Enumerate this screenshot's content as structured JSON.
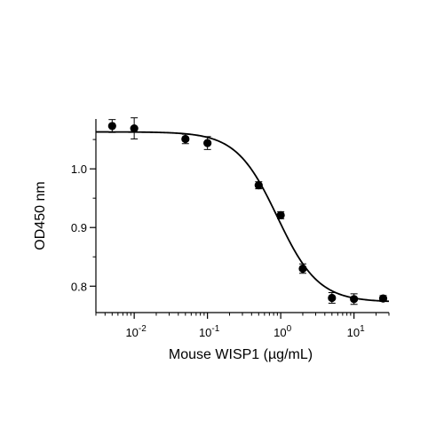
{
  "chart_data": {
    "type": "scatter",
    "xlabel": "Mouse WISP1 (µg/mL)",
    "ylabel": "OD450 nm",
    "x_scale": "log",
    "xlim": [
      0.003,
      30
    ],
    "ylim": [
      0.755,
      1.085
    ],
    "x_ticks": [
      {
        "value": 0.01,
        "base": "10",
        "exp": "-2"
      },
      {
        "value": 0.1,
        "base": "10",
        "exp": "-1"
      },
      {
        "value": 1,
        "base": "10",
        "exp": "0"
      },
      {
        "value": 10,
        "base": "10",
        "exp": "1"
      }
    ],
    "y_ticks": [
      {
        "value": 0.8,
        "label": "0.8"
      },
      {
        "value": 0.9,
        "label": "0.9"
      },
      {
        "value": 1.0,
        "label": "1.0"
      }
    ],
    "grid": false,
    "series": [
      {
        "points": [
          {
            "x": 0.005,
            "y": 1.073,
            "err": 0.011
          },
          {
            "x": 0.01,
            "y": 1.069,
            "err": 0.018
          },
          {
            "x": 0.05,
            "y": 1.051,
            "err": 0.008
          },
          {
            "x": 0.1,
            "y": 1.044,
            "err": 0.011
          },
          {
            "x": 0.5,
            "y": 0.972,
            "err": 0.006
          },
          {
            "x": 1.0,
            "y": 0.921,
            "err": 0.006
          },
          {
            "x": 2.0,
            "y": 0.83,
            "err": 0.008
          },
          {
            "x": 5.0,
            "y": 0.78,
            "err": 0.009
          },
          {
            "x": 10.0,
            "y": 0.778,
            "err": 0.009
          },
          {
            "x": 25.0,
            "y": 0.779,
            "err": 0.005
          }
        ]
      }
    ],
    "fit_curve": {
      "type": "4PL",
      "top": 1.063,
      "bottom": 0.773,
      "ec50": 0.9,
      "hill": 1.55
    },
    "colors": {
      "marker": "#000000",
      "curve": "#000000"
    }
  }
}
